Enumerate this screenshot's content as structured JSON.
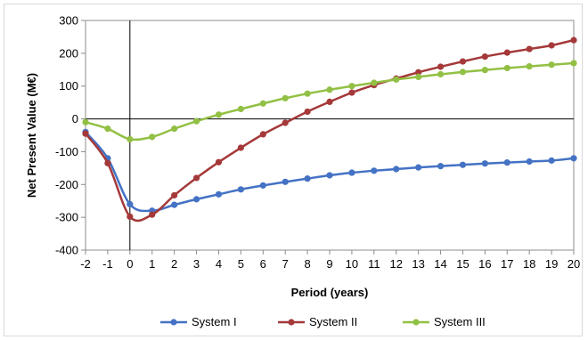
{
  "chart_data": {
    "type": "line",
    "title": "",
    "xlabel": "Period (years)",
    "ylabel": "Net Present Value (M€)",
    "x": [
      -2,
      -1,
      0,
      1,
      2,
      3,
      4,
      5,
      6,
      7,
      8,
      9,
      10,
      11,
      12,
      13,
      14,
      15,
      16,
      17,
      18,
      19,
      20
    ],
    "xlim": [
      -2,
      20
    ],
    "ylim": [
      -400,
      300
    ],
    "yticks": [
      300,
      200,
      100,
      0,
      -100,
      -200,
      -300,
      -400
    ],
    "xticks": [
      -2,
      -1,
      0,
      1,
      2,
      3,
      4,
      5,
      6,
      7,
      8,
      9,
      10,
      11,
      12,
      13,
      14,
      15,
      16,
      17,
      18,
      19,
      20
    ],
    "grid": false,
    "legend_position": "bottom",
    "series": [
      {
        "name": "System I",
        "color": "#4472c4",
        "values": [
          -40,
          -120,
          -260,
          -280,
          -262,
          -245,
          -230,
          -215,
          -203,
          -192,
          -182,
          -172,
          -164,
          -158,
          -153,
          -148,
          -144,
          -140,
          -136,
          -133,
          -130,
          -127,
          -120
        ]
      },
      {
        "name": "System II",
        "color": "#a5393a",
        "values": [
          -45,
          -135,
          -298,
          -292,
          -233,
          -180,
          -132,
          -88,
          -47,
          -12,
          22,
          52,
          80,
          103,
          123,
          142,
          159,
          175,
          190,
          202,
          213,
          224,
          240
        ]
      },
      {
        "name": "System III",
        "color": "#92c044",
        "values": [
          -10,
          -30,
          -62,
          -55,
          -30,
          -7,
          13,
          30,
          47,
          63,
          77,
          89,
          100,
          110,
          120,
          128,
          136,
          143,
          149,
          155,
          160,
          165,
          170
        ]
      }
    ]
  }
}
